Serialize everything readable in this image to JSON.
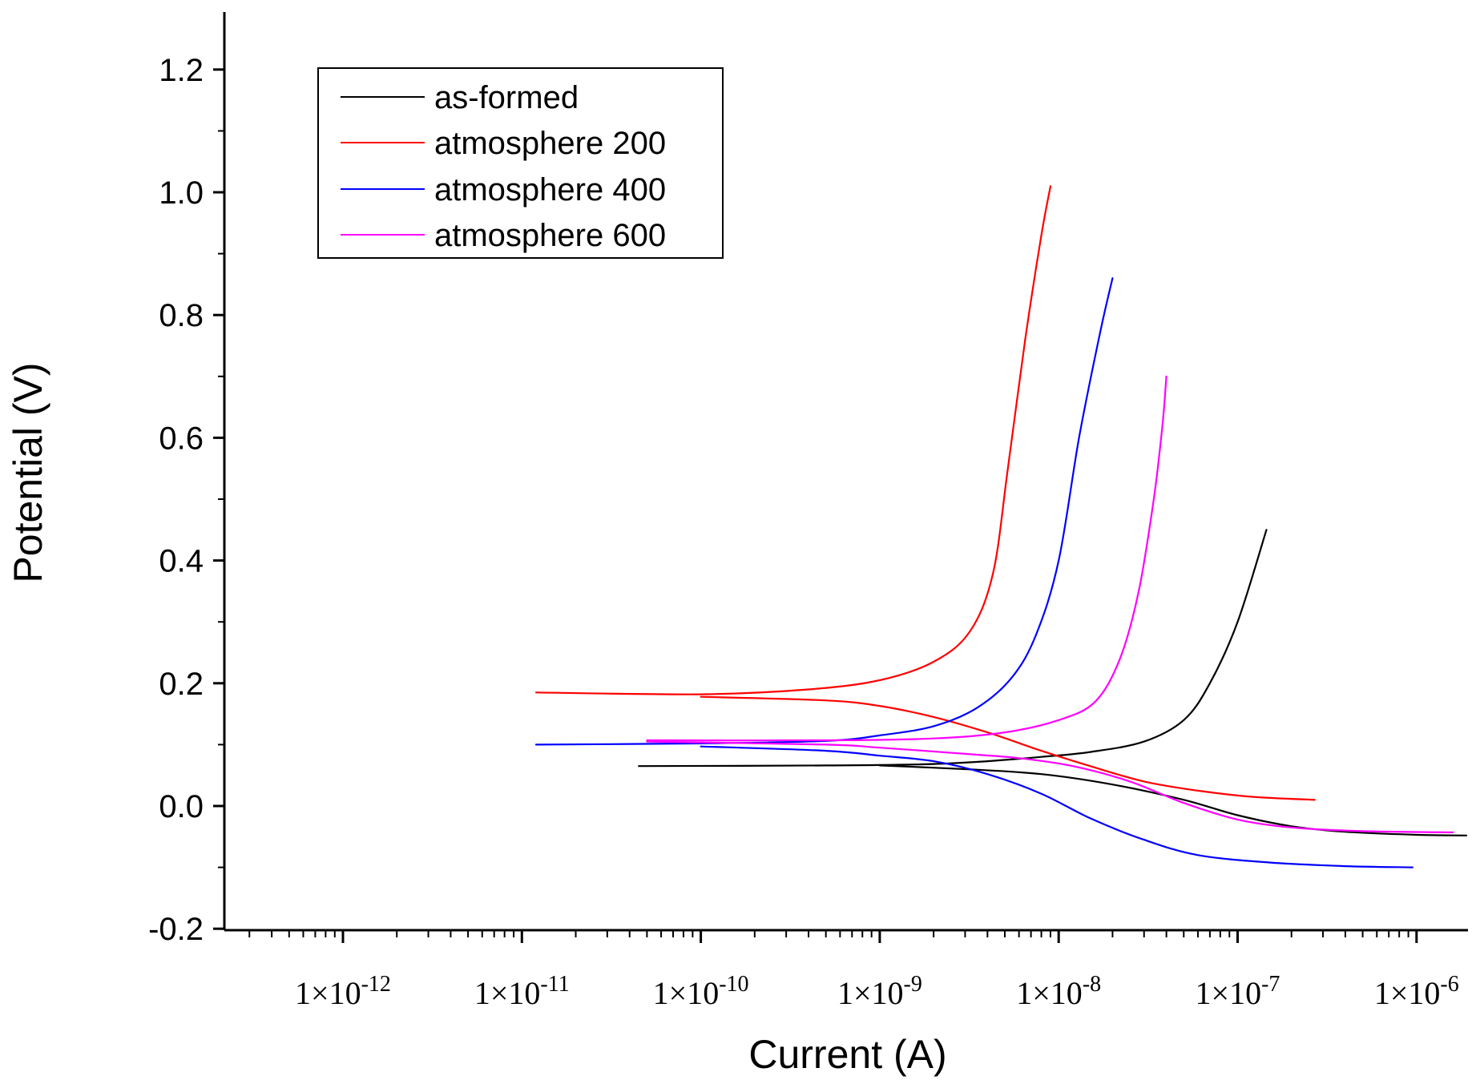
{
  "chart_data": {
    "type": "line",
    "title": "",
    "xlabel": "Current (A)",
    "ylabel": "Potential (V)",
    "xscale": "log",
    "xlim": [
      2e-13,
      2e-06
    ],
    "ylim": [
      -0.2,
      1.3
    ],
    "grid": false,
    "legend_position": "top-left",
    "x_ticks": [
      {
        "exp": -12,
        "label": "1×10-12",
        "mantissa": "1×10",
        "power": "-12"
      },
      {
        "exp": -11,
        "label": "1×10-11",
        "mantissa": "1×10",
        "power": "-11"
      },
      {
        "exp": -10,
        "label": "1×10-10",
        "mantissa": "1×10",
        "power": "-10"
      },
      {
        "exp": -9,
        "label": "1×10-9",
        "mantissa": "1×10",
        "power": "-9"
      },
      {
        "exp": -8,
        "label": "1×10-8",
        "mantissa": "1×10",
        "power": "-8"
      },
      {
        "exp": -7,
        "label": "1×10-7",
        "mantissa": "1×10",
        "power": "-7"
      },
      {
        "exp": -6,
        "label": "1×10-6",
        "mantissa": "1×10",
        "power": "-6"
      }
    ],
    "y_ticks": [
      {
        "value": -0.2,
        "label": "-0.2"
      },
      {
        "value": 0.0,
        "label": "0.0"
      },
      {
        "value": 0.2,
        "label": "0.2"
      },
      {
        "value": 0.4,
        "label": "0.4"
      },
      {
        "value": 0.6,
        "label": "0.6"
      },
      {
        "value": 0.8,
        "label": "0.8"
      },
      {
        "value": 1.0,
        "label": "1.0"
      },
      {
        "value": 1.2,
        "label": "1.2"
      }
    ],
    "series": [
      {
        "name": "as-formed",
        "color": "#000000",
        "anodic": [
          [
            4.5e-11,
            0.065
          ],
          [
            5e-10,
            0.066
          ],
          [
            1.8e-09,
            0.068
          ],
          [
            4e-09,
            0.073
          ],
          [
            8e-09,
            0.08
          ],
          [
            1.5e-08,
            0.088
          ],
          [
            3e-08,
            0.105
          ],
          [
            5e-08,
            0.14
          ],
          [
            7e-08,
            0.2
          ],
          [
            1e-07,
            0.3
          ],
          [
            1.45e-07,
            0.45
          ]
        ],
        "cathodic": [
          [
            1e-09,
            0.066
          ],
          [
            3e-09,
            0.06
          ],
          [
            8e-09,
            0.052
          ],
          [
            2e-08,
            0.035
          ],
          [
            5e-08,
            0.01
          ],
          [
            1e-07,
            -0.015
          ],
          [
            2e-07,
            -0.033
          ],
          [
            4e-07,
            -0.042
          ],
          [
            1e-06,
            -0.047
          ],
          [
            1.9e-06,
            -0.048
          ]
        ]
      },
      {
        "name": "atmosphere 200",
        "color": "#ff0000",
        "anodic": [
          [
            1.2e-11,
            0.185
          ],
          [
            1e-10,
            0.182
          ],
          [
            4e-10,
            0.19
          ],
          [
            1e-09,
            0.205
          ],
          [
            2e-09,
            0.235
          ],
          [
            3.2e-09,
            0.285
          ],
          [
            4.3e-09,
            0.38
          ],
          [
            5.2e-09,
            0.55
          ],
          [
            6.5e-09,
            0.76
          ],
          [
            8e-09,
            0.93
          ],
          [
            9e-09,
            1.01
          ]
        ],
        "cathodic": [
          [
            1e-10,
            0.178
          ],
          [
            5e-10,
            0.172
          ],
          [
            1e-09,
            0.163
          ],
          [
            2e-09,
            0.145
          ],
          [
            4e-09,
            0.12
          ],
          [
            8e-09,
            0.09
          ],
          [
            1.5e-08,
            0.065
          ],
          [
            3e-08,
            0.04
          ],
          [
            6e-08,
            0.025
          ],
          [
            1.2e-07,
            0.015
          ],
          [
            2.7e-07,
            0.01
          ]
        ]
      },
      {
        "name": "atmosphere 400",
        "color": "#0000ff",
        "anodic": [
          [
            1.2e-11,
            0.1
          ],
          [
            1e-10,
            0.102
          ],
          [
            5e-10,
            0.106
          ],
          [
            1e-09,
            0.115
          ],
          [
            2e-09,
            0.13
          ],
          [
            3.5e-09,
            0.16
          ],
          [
            5.5e-09,
            0.21
          ],
          [
            7.5e-09,
            0.28
          ],
          [
            1e-08,
            0.4
          ],
          [
            1.3e-08,
            0.6
          ],
          [
            1.7e-08,
            0.77
          ],
          [
            2e-08,
            0.86
          ]
        ],
        "cathodic": [
          [
            1e-10,
            0.097
          ],
          [
            5e-10,
            0.09
          ],
          [
            1e-09,
            0.082
          ],
          [
            2e-09,
            0.073
          ],
          [
            4e-09,
            0.052
          ],
          [
            8e-09,
            0.02
          ],
          [
            1.5e-08,
            -0.02
          ],
          [
            3e-08,
            -0.055
          ],
          [
            6e-08,
            -0.08
          ],
          [
            1.5e-07,
            -0.092
          ],
          [
            4e-07,
            -0.098
          ],
          [
            9.5e-07,
            -0.1
          ]
        ]
      },
      {
        "name": "atmosphere 600",
        "color": "#ff00ff",
        "anodic": [
          [
            5e-11,
            0.107
          ],
          [
            5e-10,
            0.107
          ],
          [
            2e-09,
            0.11
          ],
          [
            5e-09,
            0.12
          ],
          [
            1e-08,
            0.14
          ],
          [
            1.6e-08,
            0.17
          ],
          [
            2.2e-08,
            0.24
          ],
          [
            2.8e-08,
            0.35
          ],
          [
            3.4e-08,
            0.5
          ],
          [
            3.8e-08,
            0.62
          ],
          [
            4e-08,
            0.7
          ]
        ],
        "cathodic": [
          [
            5e-11,
            0.105
          ],
          [
            5e-10,
            0.1
          ],
          [
            1e-09,
            0.095
          ],
          [
            3e-09,
            0.085
          ],
          [
            6e-09,
            0.078
          ],
          [
            1.2e-08,
            0.065
          ],
          [
            2.5e-08,
            0.04
          ],
          [
            5e-08,
            0.005
          ],
          [
            1e-07,
            -0.022
          ],
          [
            2e-07,
            -0.035
          ],
          [
            5e-07,
            -0.041
          ],
          [
            1.6e-06,
            -0.043
          ]
        ]
      }
    ]
  }
}
